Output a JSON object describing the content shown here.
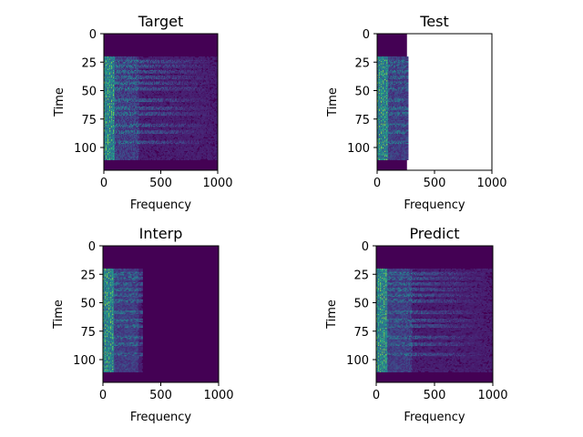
{
  "chart_data": [
    {
      "type": "heatmap",
      "title": "Target",
      "xlabel": "Frequency",
      "ylabel": "Time",
      "xlim": [
        0,
        1000
      ],
      "ylim": [
        120,
        0
      ],
      "y_inverted": true,
      "xticks": [
        0,
        500,
        1000
      ],
      "yticks": [
        0,
        25,
        50,
        75,
        100
      ],
      "colormap": "viridis",
      "data_x_range": [
        0,
        1000
      ],
      "energy_time_range": [
        20,
        110
      ],
      "harmonic_rows": [
        24,
        28,
        33,
        38,
        43,
        48,
        58,
        65,
        70,
        80,
        86,
        95
      ],
      "high_freq_extent": 1000
    },
    {
      "type": "heatmap",
      "title": "Test",
      "xlabel": "Frequency",
      "ylabel": "Time",
      "xlim": [
        0,
        1000
      ],
      "ylim": [
        120,
        0
      ],
      "y_inverted": true,
      "xticks": [
        0,
        500,
        1000
      ],
      "yticks": [
        0,
        25,
        50,
        75,
        100
      ],
      "colormap": "viridis",
      "data_x_range": [
        0,
        260
      ],
      "energy_time_range": [
        20,
        110
      ],
      "harmonic_rows": [
        24,
        28,
        33,
        38,
        43,
        48,
        58,
        65,
        70,
        80,
        86,
        95
      ],
      "high_freq_extent": 260
    },
    {
      "type": "heatmap",
      "title": "Interp",
      "xlabel": "Frequency",
      "ylabel": "Time",
      "xlim": [
        0,
        1000
      ],
      "ylim": [
        120,
        0
      ],
      "y_inverted": true,
      "xticks": [
        0,
        500,
        1000
      ],
      "yticks": [
        0,
        25,
        50,
        75,
        100
      ],
      "colormap": "viridis",
      "data_x_range": [
        0,
        1000
      ],
      "energy_time_range": [
        20,
        110
      ],
      "harmonic_rows": [
        24,
        28,
        33,
        38,
        43,
        48,
        58,
        65,
        70,
        80,
        86,
        95
      ],
      "high_freq_extent": 330
    },
    {
      "type": "heatmap",
      "title": "Predict",
      "xlabel": "Frequency",
      "ylabel": "Time",
      "xlim": [
        0,
        1000
      ],
      "ylim": [
        120,
        0
      ],
      "y_inverted": true,
      "xticks": [
        0,
        500,
        1000
      ],
      "yticks": [
        0,
        25,
        50,
        75,
        100
      ],
      "colormap": "viridis",
      "data_x_range": [
        0,
        1000
      ],
      "energy_time_range": [
        20,
        110
      ],
      "harmonic_rows": [
        24,
        28,
        33,
        38,
        43,
        48,
        58,
        65,
        70,
        80,
        86,
        95
      ],
      "high_freq_extent": 1000
    }
  ]
}
